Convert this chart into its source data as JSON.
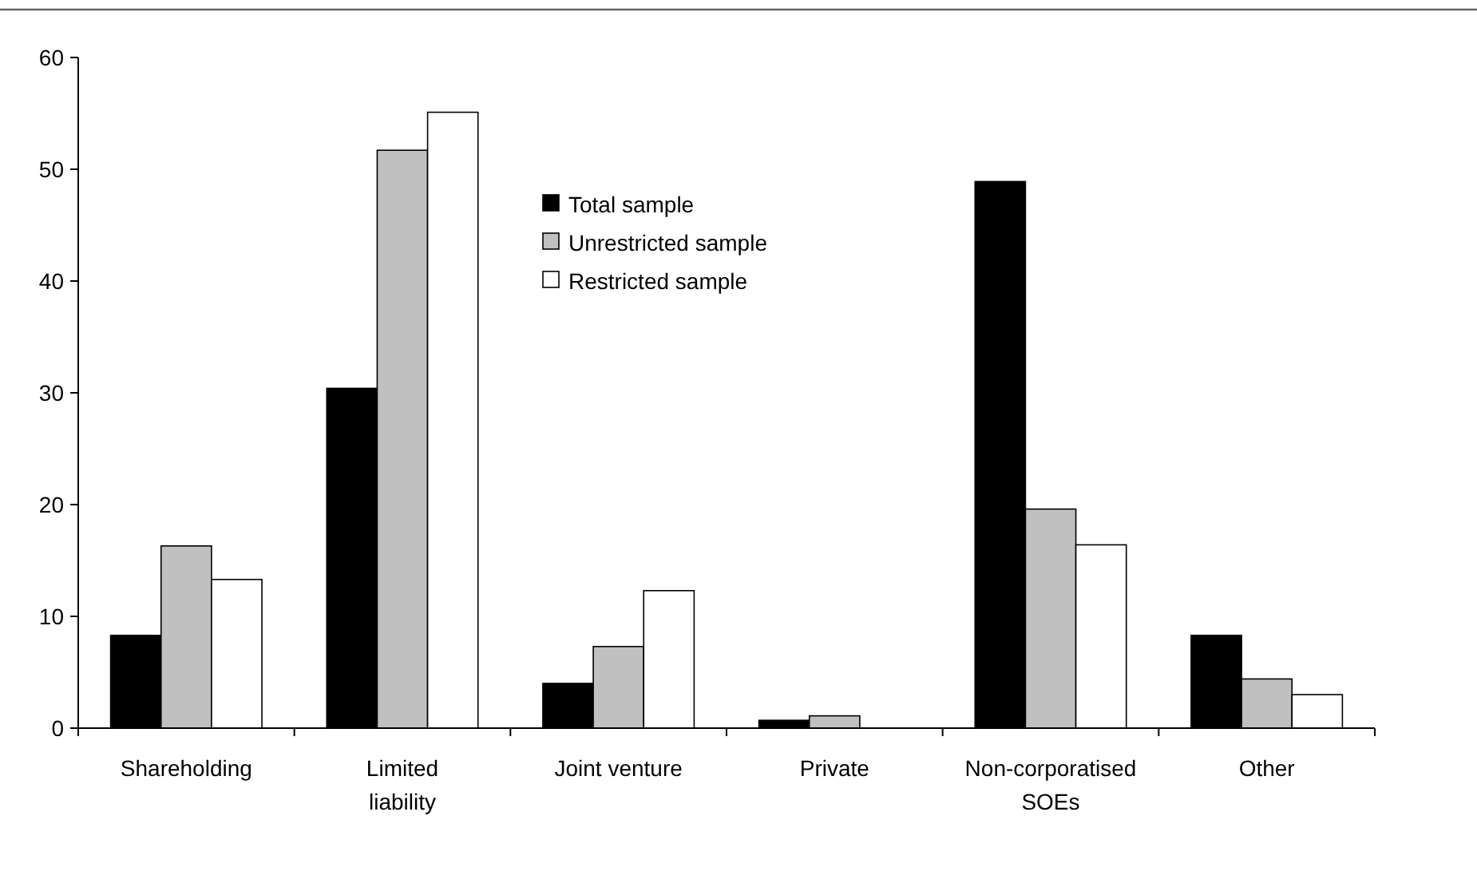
{
  "chart_data": {
    "type": "bar",
    "categories": [
      "Shareholding",
      "Limited liability",
      "Joint venture",
      "Private",
      "Non-corporatised SOEs",
      "Other"
    ],
    "series": [
      {
        "name": "Total sample",
        "color": "#000000",
        "values": [
          8.3,
          30.4,
          4.0,
          0.7,
          48.9,
          8.3
        ]
      },
      {
        "name": "Unrestricted sample",
        "color": "#c0c0c0",
        "values": [
          16.3,
          51.7,
          7.3,
          1.1,
          19.6,
          4.4
        ]
      },
      {
        "name": "Restricted sample",
        "color": "#ffffff",
        "values": [
          13.3,
          55.1,
          12.3,
          0,
          16.4,
          3.0
        ]
      }
    ],
    "ylim": [
      0,
      60
    ],
    "yticks": [
      0,
      10,
      20,
      30,
      40,
      50,
      60
    ],
    "grid": false,
    "legend": "top"
  }
}
